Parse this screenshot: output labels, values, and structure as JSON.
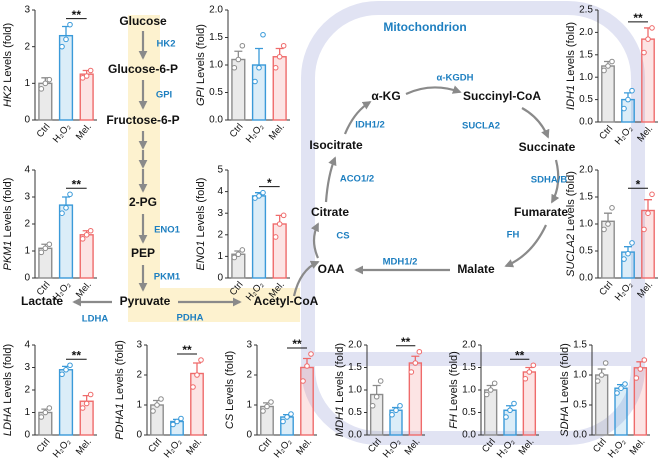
{
  "pathway": {
    "title": "Mitochondrion",
    "metabolites": [
      "Glucose",
      "Glucose-6-P",
      "Fructose-6-P",
      "2-PG",
      "PEP",
      "Pyruvate",
      "Lactate",
      "Acetyl-CoA",
      "α-KG",
      "Succinyl-CoA",
      "Succinate",
      "Fumarate",
      "Malate",
      "OAA",
      "Citrate",
      "Isocitrate"
    ],
    "enzymes": [
      "HK2",
      "GPI",
      "ENO1",
      "PKM1",
      "LDHA",
      "PDHA",
      "α-KGDH",
      "SUCLA2",
      "SDHA/B",
      "FH",
      "MDH1/2",
      "CS",
      "ACO1/2",
      "IDH1/2"
    ]
  },
  "chart_data": [
    {
      "type": "bar",
      "gene": "HK2",
      "ylabel": "Levels (fold)",
      "categories": [
        "Ctrl",
        "H₂O₂",
        "Mel."
      ],
      "colors": [
        "#8c8c8c",
        "#3a9ad9",
        "#ef6b6b"
      ],
      "values": [
        1.0,
        2.3,
        1.25
      ],
      "errors": [
        0.15,
        0.25,
        0.1
      ],
      "points": [
        [
          0.85,
          1.0,
          1.1
        ],
        [
          2.0,
          2.2,
          2.6
        ],
        [
          1.15,
          1.2,
          1.35
        ]
      ],
      "ylim": [
        0,
        3
      ],
      "yticks": [
        0,
        1,
        2,
        3
      ],
      "significance": "**"
    },
    {
      "type": "bar",
      "gene": "GPI",
      "ylabel": "Levels (fold)",
      "categories": [
        "Ctrl",
        "H₂O₂",
        "Mel."
      ],
      "colors": [
        "#8c8c8c",
        "#3a9ad9",
        "#ef6b6b"
      ],
      "values": [
        1.1,
        1.0,
        1.15
      ],
      "errors": [
        0.15,
        0.3,
        0.15
      ],
      "points": [
        [
          0.95,
          1.1,
          1.35
        ],
        [
          0.7,
          0.95,
          1.55
        ],
        [
          0.95,
          1.15,
          1.35
        ]
      ],
      "ylim": [
        0,
        2
      ],
      "yticks": [
        {
          "value": 0,
          "label": "0.0"
        },
        0.5,
        {
          "value": 1,
          "label": "1.0"
        },
        1.5,
        {
          "value": 2,
          "label": "2.0"
        }
      ]
    },
    {
      "type": "bar",
      "gene": "IDH1",
      "ylabel": "Levels (fold)",
      "categories": [
        "Ctrl",
        "H₂O₂",
        "Mel."
      ],
      "colors": [
        "#8c8c8c",
        "#3a9ad9",
        "#ef6b6b"
      ],
      "values": [
        1.25,
        0.5,
        1.85
      ],
      "errors": [
        0.1,
        0.15,
        0.25
      ],
      "points": [
        [
          1.15,
          1.25,
          1.35
        ],
        [
          0.3,
          0.5,
          0.7
        ],
        [
          1.55,
          1.85,
          2.1
        ]
      ],
      "ylim": [
        0,
        2.5
      ],
      "yticks": [
        {
          "value": 0,
          "label": "0.0"
        },
        0.5,
        {
          "value": 1,
          "label": "1.0"
        },
        1.5,
        {
          "value": 2,
          "label": "2.0"
        },
        2.5
      ],
      "significance": "**"
    },
    {
      "type": "bar",
      "gene": "PKM1",
      "ylabel": "Levels (fold)",
      "categories": [
        "Ctrl",
        "H₂O₂",
        "Mel."
      ],
      "colors": [
        "#8c8c8c",
        "#3a9ad9",
        "#ef6b6b"
      ],
      "values": [
        1.1,
        2.7,
        1.6
      ],
      "errors": [
        0.15,
        0.3,
        0.15
      ],
      "points": [
        [
          0.95,
          1.1,
          1.25
        ],
        [
          2.4,
          2.6,
          3.1
        ],
        [
          1.45,
          1.6,
          1.75
        ]
      ],
      "ylim": [
        0,
        4
      ],
      "yticks": [
        0,
        1,
        2,
        3,
        4
      ],
      "significance": "**"
    },
    {
      "type": "bar",
      "gene": "ENO1",
      "ylabel": "Levels (fold)",
      "categories": [
        "Ctrl",
        "H₂O₂",
        "Mel."
      ],
      "colors": [
        "#8c8c8c",
        "#3a9ad9",
        "#ef6b6b"
      ],
      "values": [
        1.1,
        3.8,
        2.5
      ],
      "errors": [
        0.15,
        0.15,
        0.4
      ],
      "points": [
        [
          0.95,
          1.1,
          1.3
        ],
        [
          3.7,
          3.8,
          3.95
        ],
        [
          1.9,
          2.5,
          2.9
        ]
      ],
      "ylim": [
        0,
        5
      ],
      "yticks": [
        0,
        1,
        2,
        3,
        4,
        5
      ],
      "significance": "*"
    },
    {
      "type": "bar",
      "gene": "SUCLA2",
      "ylabel": "Levels (fold)",
      "categories": [
        "Ctrl",
        "H₂O₂",
        "Mel."
      ],
      "colors": [
        "#8c8c8c",
        "#3a9ad9",
        "#ef6b6b"
      ],
      "values": [
        1.05,
        0.48,
        1.25
      ],
      "errors": [
        0.15,
        0.1,
        0.2
      ],
      "points": [
        [
          0.9,
          1.0,
          1.3
        ],
        [
          0.35,
          0.45,
          0.65
        ],
        [
          0.9,
          1.2,
          1.55
        ]
      ],
      "ylim": [
        0,
        2
      ],
      "yticks": [
        {
          "value": 0,
          "label": "0.0"
        },
        0.5,
        {
          "value": 1,
          "label": "1.0"
        },
        1.5,
        {
          "value": 2,
          "label": "2.0"
        }
      ],
      "significance": "*"
    },
    {
      "type": "bar",
      "gene": "LDHA",
      "ylabel": "Levels (fold)",
      "categories": [
        "Ctrl",
        "H₂O₂",
        "Mel."
      ],
      "colors": [
        "#8c8c8c",
        "#3a9ad9",
        "#ef6b6b"
      ],
      "values": [
        1.0,
        2.9,
        1.5
      ],
      "errors": [
        0.15,
        0.15,
        0.25
      ],
      "points": [
        [
          0.8,
          1.0,
          1.2
        ],
        [
          2.7,
          2.9,
          3.1
        ],
        [
          1.2,
          1.4,
          1.8
        ]
      ],
      "ylim": [
        0,
        4
      ],
      "yticks": [
        0,
        1,
        2,
        3,
        4
      ],
      "significance": "**"
    },
    {
      "type": "bar",
      "gene": "PDHA1",
      "ylabel": "Levels (fold)",
      "categories": [
        "Ctrl",
        "H₂O₂",
        "Mel."
      ],
      "colors": [
        "#8c8c8c",
        "#3a9ad9",
        "#ef6b6b"
      ],
      "values": [
        1.0,
        0.45,
        2.05
      ],
      "errors": [
        0.15,
        0.07,
        0.35
      ],
      "points": [
        [
          0.8,
          1.0,
          1.2
        ],
        [
          0.35,
          0.45,
          0.55
        ],
        [
          1.6,
          2.0,
          2.5
        ]
      ],
      "ylim": [
        0,
        3
      ],
      "yticks": [
        0,
        1,
        2,
        3
      ],
      "significance": "**"
    },
    {
      "type": "bar",
      "gene": "CS",
      "ylabel": "Levels (fold)",
      "categories": [
        "Ctrl",
        "H₂O₂",
        "Mel."
      ],
      "colors": [
        "#8c8c8c",
        "#3a9ad9",
        "#ef6b6b"
      ],
      "values": [
        0.95,
        0.6,
        2.25
      ],
      "errors": [
        0.12,
        0.08,
        0.3
      ],
      "points": [
        [
          0.8,
          0.95,
          1.1
        ],
        [
          0.45,
          0.6,
          0.7
        ],
        [
          1.8,
          2.3,
          2.7
        ]
      ],
      "ylim": [
        0,
        3
      ],
      "yticks": [
        0,
        1,
        2,
        3
      ],
      "significance": "**"
    },
    {
      "type": "bar",
      "gene": "MDH1",
      "ylabel": "Levels (fold)",
      "categories": [
        "Ctrl",
        "H₂O₂",
        "Mel."
      ],
      "colors": [
        "#8c8c8c",
        "#3a9ad9",
        "#ef6b6b"
      ],
      "values": [
        0.9,
        0.55,
        1.6
      ],
      "errors": [
        0.2,
        0.06,
        0.15
      ],
      "points": [
        [
          0.65,
          0.85,
          1.2
        ],
        [
          0.45,
          0.55,
          0.65
        ],
        [
          1.4,
          1.6,
          1.85
        ]
      ],
      "ylim": [
        0,
        2
      ],
      "yticks": [
        {
          "value": 0,
          "label": "0.0"
        },
        0.5,
        {
          "value": 1,
          "label": "1.0"
        },
        1.5,
        {
          "value": 2,
          "label": "2.0"
        }
      ],
      "significance": "**"
    },
    {
      "type": "bar",
      "gene": "FH",
      "ylabel": "Levels (fold)",
      "categories": [
        "Ctrl",
        "H₂O₂",
        "Mel."
      ],
      "colors": [
        "#8c8c8c",
        "#3a9ad9",
        "#ef6b6b"
      ],
      "values": [
        1.0,
        0.55,
        1.4
      ],
      "errors": [
        0.1,
        0.1,
        0.1
      ],
      "points": [
        [
          0.9,
          1.0,
          1.15
        ],
        [
          0.4,
          0.55,
          0.7
        ],
        [
          1.25,
          1.4,
          1.55
        ]
      ],
      "ylim": [
        0,
        2
      ],
      "yticks": [
        {
          "value": 0,
          "label": "0.0"
        },
        0.5,
        {
          "value": 1,
          "label": "1.0"
        },
        1.5,
        {
          "value": 2,
          "label": "2.0"
        }
      ],
      "significance": "**"
    },
    {
      "type": "bar",
      "gene": "SDHA",
      "ylabel": "Levels (fold)",
      "categories": [
        "Ctrl",
        "H₂O₂",
        "Mel."
      ],
      "colors": [
        "#8c8c8c",
        "#3a9ad9",
        "#ef6b6b"
      ],
      "values": [
        1.0,
        0.78,
        1.12
      ],
      "errors": [
        0.1,
        0.06,
        0.1
      ],
      "points": [
        [
          0.9,
          1.0,
          1.2
        ],
        [
          0.7,
          0.78,
          0.85
        ],
        [
          0.95,
          1.1,
          1.25
        ]
      ],
      "ylim": [
        0,
        1.5
      ],
      "yticks": [
        {
          "value": 0,
          "label": "0.0"
        },
        0.5,
        {
          "value": 1,
          "label": "1.0"
        },
        1.5
      ]
    }
  ]
}
